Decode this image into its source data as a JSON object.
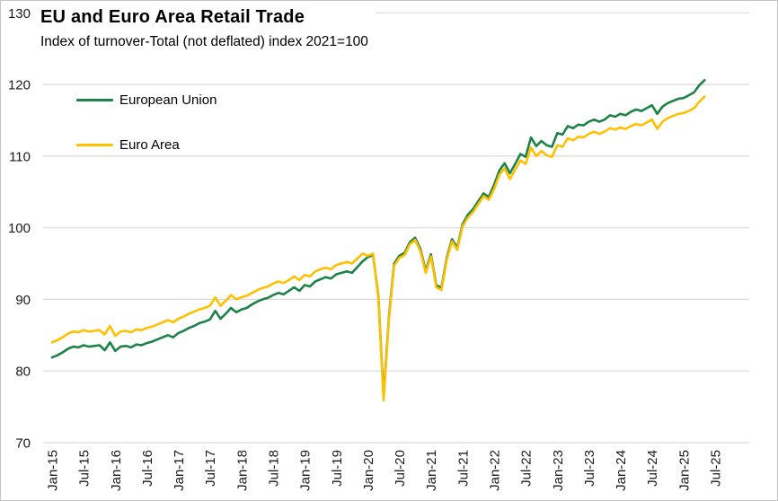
{
  "chart_data": {
    "type": "line",
    "title": "EU and Euro Area Retail Trade",
    "subtitle": "Index of turnover-Total (not deflated) index 2021=100",
    "grid": "horizontal",
    "legend_position": "inside-top-left",
    "gridline_color": "#D9D9D9",
    "axis_text_color": "#1A1A1A",
    "ylim": [
      70,
      130
    ],
    "y_ticks": [
      70,
      80,
      90,
      100,
      110,
      120,
      130
    ],
    "x_unit": "month",
    "x_range": [
      "Jan-2015",
      "May-2025"
    ],
    "x_tick_every_months": 6,
    "x_tick_labels": [
      "Jan-15",
      "Jul-15",
      "Jan-16",
      "Jul-16",
      "Jan-17",
      "Jul-17",
      "Jan-18",
      "Jul-18",
      "Jan-19",
      "Jul-19",
      "Jan-20",
      "Jul-20",
      "Jan-21",
      "Jul-21",
      "Jan-22",
      "Jul-22",
      "Jan-23",
      "Jul-23",
      "Jan-24",
      "Jul-24",
      "Jan-25",
      "Jul-25"
    ],
    "series": [
      {
        "name": "European Union",
        "color": "#1D8348",
        "values": [
          81.9,
          82.2,
          82.6,
          83.1,
          83.4,
          83.3,
          83.6,
          83.4,
          83.5,
          83.6,
          82.9,
          84.0,
          82.8,
          83.4,
          83.5,
          83.3,
          83.7,
          83.6,
          83.9,
          84.1,
          84.4,
          84.7,
          85.0,
          84.7,
          85.3,
          85.6,
          86.0,
          86.3,
          86.7,
          86.9,
          87.2,
          88.4,
          87.3,
          88.0,
          88.8,
          88.2,
          88.6,
          88.8,
          89.3,
          89.7,
          90.0,
          90.2,
          90.6,
          90.9,
          90.7,
          91.2,
          91.7,
          91.2,
          92.0,
          91.8,
          92.5,
          92.8,
          93.1,
          92.9,
          93.5,
          93.7,
          93.9,
          93.7,
          94.5,
          95.3,
          95.9,
          96.2,
          90.5,
          76.4,
          87.5,
          95.0,
          96.1,
          96.5,
          98.0,
          98.6,
          97.0,
          94.0,
          96.3,
          92.0,
          91.6,
          95.8,
          98.4,
          97.2,
          100.5,
          101.8,
          102.6,
          103.7,
          104.8,
          104.3,
          106.0,
          108.0,
          109.0,
          107.6,
          108.9,
          110.3,
          109.9,
          112.6,
          111.4,
          112.1,
          111.5,
          111.3,
          113.2,
          113.0,
          114.2,
          113.9,
          114.4,
          114.3,
          114.8,
          115.1,
          114.8,
          115.1,
          115.7,
          115.5,
          115.9,
          115.7,
          116.2,
          116.5,
          116.3,
          116.7,
          117.1,
          115.9,
          116.9,
          117.4,
          117.7,
          118.0,
          118.1,
          118.5,
          118.9,
          119.9,
          120.6
        ]
      },
      {
        "name": "Euro Area",
        "color": "#FFC000",
        "values": [
          84.0,
          84.3,
          84.7,
          85.2,
          85.5,
          85.4,
          85.7,
          85.5,
          85.6,
          85.7,
          85.1,
          86.3,
          84.9,
          85.5,
          85.6,
          85.4,
          85.8,
          85.7,
          86.0,
          86.2,
          86.5,
          86.8,
          87.1,
          86.8,
          87.3,
          87.6,
          88.0,
          88.3,
          88.6,
          88.8,
          89.1,
          90.3,
          89.1,
          89.8,
          90.6,
          90.0,
          90.3,
          90.5,
          90.9,
          91.3,
          91.6,
          91.8,
          92.2,
          92.5,
          92.3,
          92.7,
          93.2,
          92.7,
          93.4,
          93.2,
          93.9,
          94.2,
          94.4,
          94.2,
          94.8,
          95.0,
          95.2,
          95.0,
          95.7,
          96.4,
          96.1,
          96.4,
          90.2,
          75.9,
          87.1,
          94.7,
          95.8,
          96.2,
          97.7,
          98.3,
          96.7,
          93.7,
          96.0,
          91.7,
          91.3,
          95.5,
          98.1,
          96.9,
          100.2,
          101.4,
          102.2,
          103.3,
          104.4,
          103.9,
          105.4,
          107.4,
          108.3,
          106.8,
          108.1,
          109.4,
          108.9,
          111.2,
          110.0,
          110.7,
          110.1,
          109.9,
          111.5,
          111.3,
          112.5,
          112.2,
          112.7,
          112.6,
          113.1,
          113.4,
          113.1,
          113.4,
          113.9,
          113.7,
          114.0,
          113.8,
          114.2,
          114.5,
          114.3,
          114.7,
          115.1,
          113.8,
          114.8,
          115.3,
          115.6,
          115.9,
          116.0,
          116.3,
          116.7,
          117.6,
          118.3
        ]
      }
    ]
  }
}
